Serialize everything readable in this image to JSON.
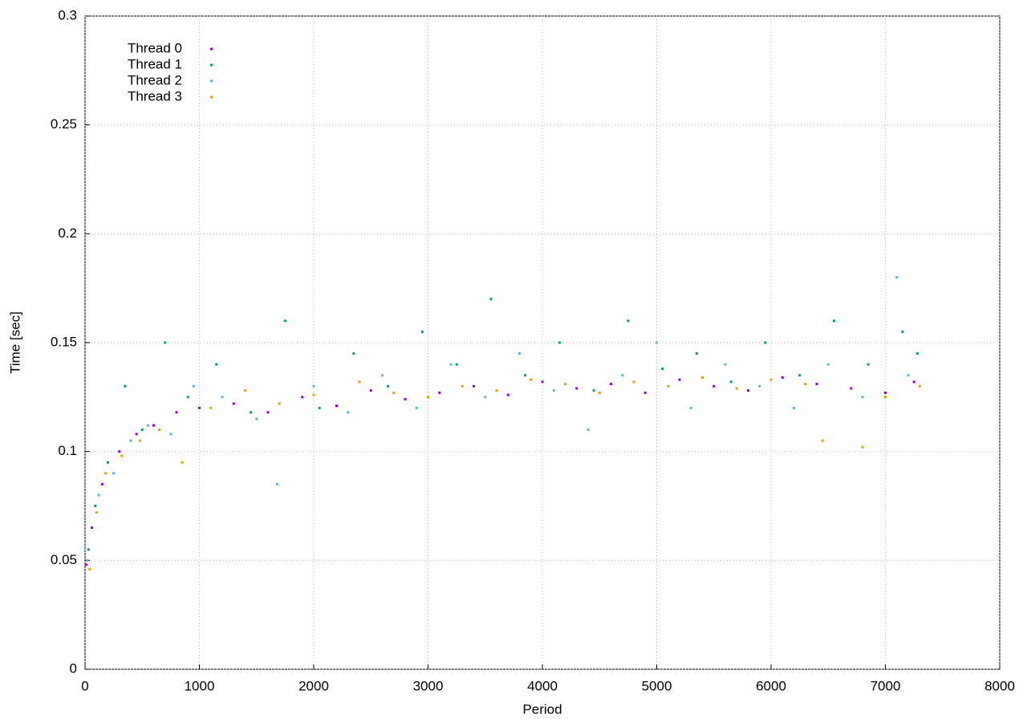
{
  "chart_data": {
    "type": "scatter",
    "x_label": "Period",
    "y_label": "Time [sec]",
    "xlim": [
      0,
      8000
    ],
    "xticks": [
      0,
      1000,
      2000,
      3000,
      4000,
      5000,
      6000,
      7000,
      8000
    ],
    "ylim": [
      0,
      0.3
    ],
    "yticks": [
      0,
      0.05,
      0.1,
      0.15,
      0.2,
      0.25,
      0.3
    ],
    "grid": true,
    "legend": "top-left",
    "series": [
      {
        "name": "Thread 0",
        "color": "#9400d3",
        "x": [
          10,
          60,
          150,
          300,
          450,
          600,
          800,
          1000,
          1300,
          1600,
          1900,
          2200,
          2500,
          2800,
          3100,
          3400,
          3700,
          4000,
          4300,
          4600,
          4900,
          5200,
          5500,
          5800,
          6100,
          6400,
          6700,
          7000,
          7250
        ],
        "values": [
          0.048,
          0.065,
          0.085,
          0.1,
          0.108,
          0.112,
          0.118,
          0.12,
          0.122,
          0.118,
          0.125,
          0.121,
          0.128,
          0.124,
          0.127,
          0.13,
          0.126,
          0.132,
          0.129,
          0.131,
          0.127,
          0.133,
          0.13,
          0.128,
          0.134,
          0.131,
          0.129,
          0.127,
          0.132
        ]
      },
      {
        "name": "Thread 1",
        "color": "#009e73",
        "x": [
          30,
          90,
          200,
          350,
          500,
          700,
          900,
          1150,
          1450,
          1750,
          2050,
          2350,
          2650,
          2950,
          3250,
          3550,
          3850,
          4150,
          4450,
          4750,
          5050,
          5350,
          5650,
          5950,
          6250,
          6550,
          6850,
          7150,
          7280
        ],
        "values": [
          0.055,
          0.075,
          0.095,
          0.13,
          0.11,
          0.15,
          0.125,
          0.14,
          0.118,
          0.16,
          0.12,
          0.145,
          0.13,
          0.155,
          0.14,
          0.17,
          0.135,
          0.15,
          0.128,
          0.16,
          0.138,
          0.145,
          0.132,
          0.15,
          0.135,
          0.16,
          0.14,
          0.155,
          0.145
        ]
      },
      {
        "name": "Thread 2",
        "color": "#56b4e9",
        "x": [
          20,
          120,
          250,
          400,
          550,
          750,
          950,
          1200,
          1500,
          1680,
          2000,
          2300,
          2600,
          2900,
          3200,
          3500,
          3800,
          4100,
          4400,
          4700,
          5000,
          5300,
          5600,
          5900,
          6200,
          6500,
          6800,
          7100,
          7200
        ],
        "values": [
          0.05,
          0.08,
          0.09,
          0.105,
          0.112,
          0.108,
          0.13,
          0.125,
          0.115,
          0.085,
          0.13,
          0.118,
          0.135,
          0.12,
          0.14,
          0.125,
          0.145,
          0.128,
          0.11,
          0.135,
          0.15,
          0.12,
          0.14,
          0.13,
          0.12,
          0.14,
          0.125,
          0.18,
          0.135
        ]
      },
      {
        "name": "Thread 3",
        "color": "#e69f00",
        "x": [
          40,
          100,
          180,
          320,
          480,
          650,
          850,
          1100,
          1400,
          1700,
          2000,
          2400,
          2700,
          3000,
          3300,
          3600,
          3900,
          4200,
          4500,
          4800,
          5100,
          5400,
          5700,
          6000,
          6300,
          6450,
          6800,
          7000,
          7300
        ],
        "values": [
          0.046,
          0.072,
          0.09,
          0.098,
          0.105,
          0.11,
          0.095,
          0.12,
          0.128,
          0.122,
          0.126,
          0.132,
          0.127,
          0.125,
          0.13,
          0.128,
          0.133,
          0.131,
          0.127,
          0.132,
          0.13,
          0.134,
          0.129,
          0.133,
          0.131,
          0.105,
          0.102,
          0.125,
          0.13
        ]
      }
    ]
  }
}
